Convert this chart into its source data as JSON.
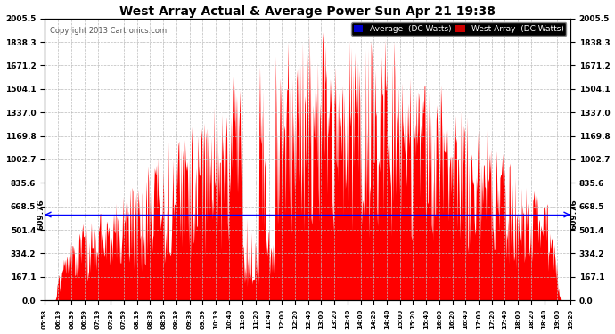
{
  "title": "West Array Actual & Average Power Sun Apr 21 19:38",
  "copyright": "Copyright 2013 Cartronics.com",
  "average_value": 609.76,
  "average_label": "609.76",
  "y_max": 2005.5,
  "y_ticks": [
    0.0,
    167.1,
    334.2,
    501.4,
    668.5,
    835.6,
    1002.7,
    1169.8,
    1337.0,
    1504.1,
    1671.2,
    1838.3,
    2005.5
  ],
  "background_color": "#ffffff",
  "plot_bg_color": "#ffffff",
  "grid_color": "#bbbbbb",
  "fill_color": "#ff0000",
  "avg_line_color": "#0000ff",
  "legend_avg_bg": "#0000cc",
  "legend_west_bg": "#cc0000",
  "x_labels": [
    "05:58",
    "06:19",
    "06:39",
    "06:59",
    "07:19",
    "07:39",
    "07:59",
    "08:19",
    "08:39",
    "08:59",
    "09:19",
    "09:39",
    "09:59",
    "10:19",
    "10:40",
    "11:00",
    "11:20",
    "11:40",
    "12:00",
    "12:20",
    "12:40",
    "13:00",
    "13:20",
    "13:40",
    "14:00",
    "14:20",
    "14:40",
    "15:00",
    "15:20",
    "15:40",
    "16:00",
    "16:20",
    "16:40",
    "17:00",
    "17:20",
    "17:40",
    "18:00",
    "18:20",
    "18:40",
    "19:00",
    "19:20"
  ],
  "fig_width": 6.9,
  "fig_height": 3.75,
  "dpi": 100
}
